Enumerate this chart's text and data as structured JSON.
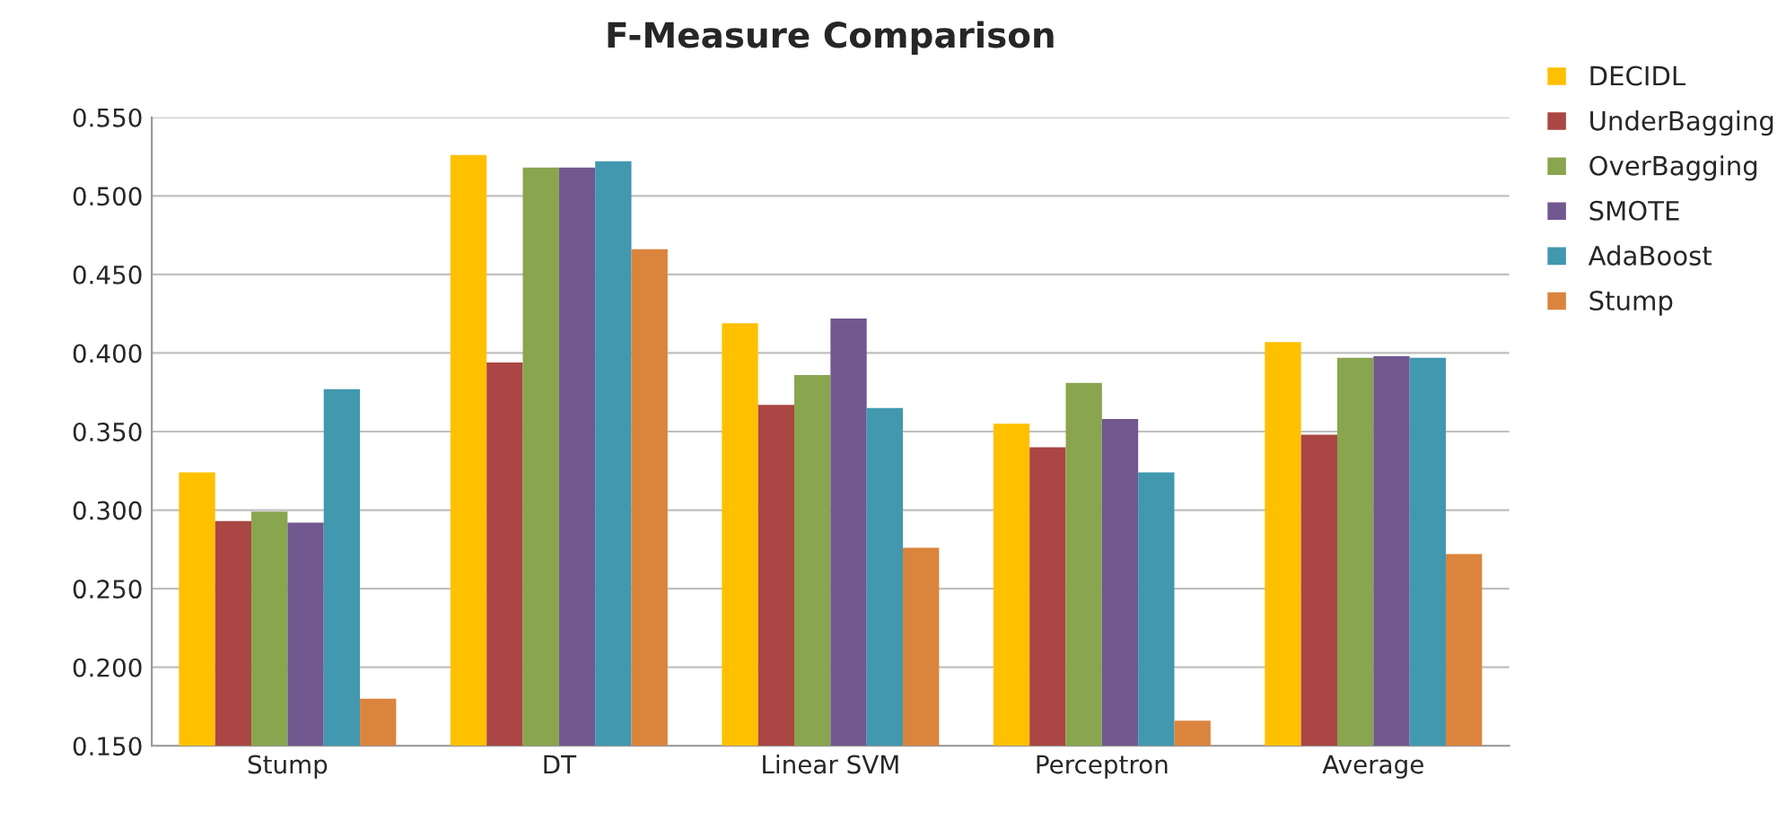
{
  "chart_data": {
    "type": "bar",
    "title": "F-Measure Comparison",
    "categories": [
      "Stump",
      "DT",
      "Linear SVM",
      "Perceptron",
      "Average"
    ],
    "series": [
      {
        "name": "DECIDL",
        "color": "#ffc000",
        "values": [
          0.324,
          0.526,
          0.419,
          0.355,
          0.407
        ]
      },
      {
        "name": "UnderBagging",
        "color": "#aa4643",
        "values": [
          0.293,
          0.394,
          0.367,
          0.34,
          0.348
        ]
      },
      {
        "name": "OverBagging",
        "color": "#89a54e",
        "values": [
          0.299,
          0.518,
          0.386,
          0.381,
          0.397
        ]
      },
      {
        "name": "SMOTE",
        "color": "#71588f",
        "values": [
          0.292,
          0.518,
          0.422,
          0.358,
          0.398
        ]
      },
      {
        "name": "AdaBoost",
        "color": "#4198af",
        "values": [
          0.377,
          0.522,
          0.365,
          0.324,
          0.397
        ]
      },
      {
        "name": "Stump",
        "color": "#db843d",
        "values": [
          0.18,
          0.466,
          0.276,
          0.166,
          0.272
        ]
      }
    ],
    "ylim": [
      0.15,
      0.55
    ],
    "yticks": [
      {
        "value": 0.15,
        "label": "0.150"
      },
      {
        "value": 0.2,
        "label": "0.200"
      },
      {
        "value": 0.25,
        "label": "0.250"
      },
      {
        "value": 0.3,
        "label": "0.300"
      },
      {
        "value": 0.35,
        "label": "0.350"
      },
      {
        "value": 0.4,
        "label": "0.400"
      },
      {
        "value": 0.45,
        "label": "0.450"
      },
      {
        "value": 0.5,
        "label": "0.500"
      },
      {
        "value": 0.55,
        "label": "0.550"
      }
    ],
    "grid": "y",
    "legend": "top right"
  }
}
